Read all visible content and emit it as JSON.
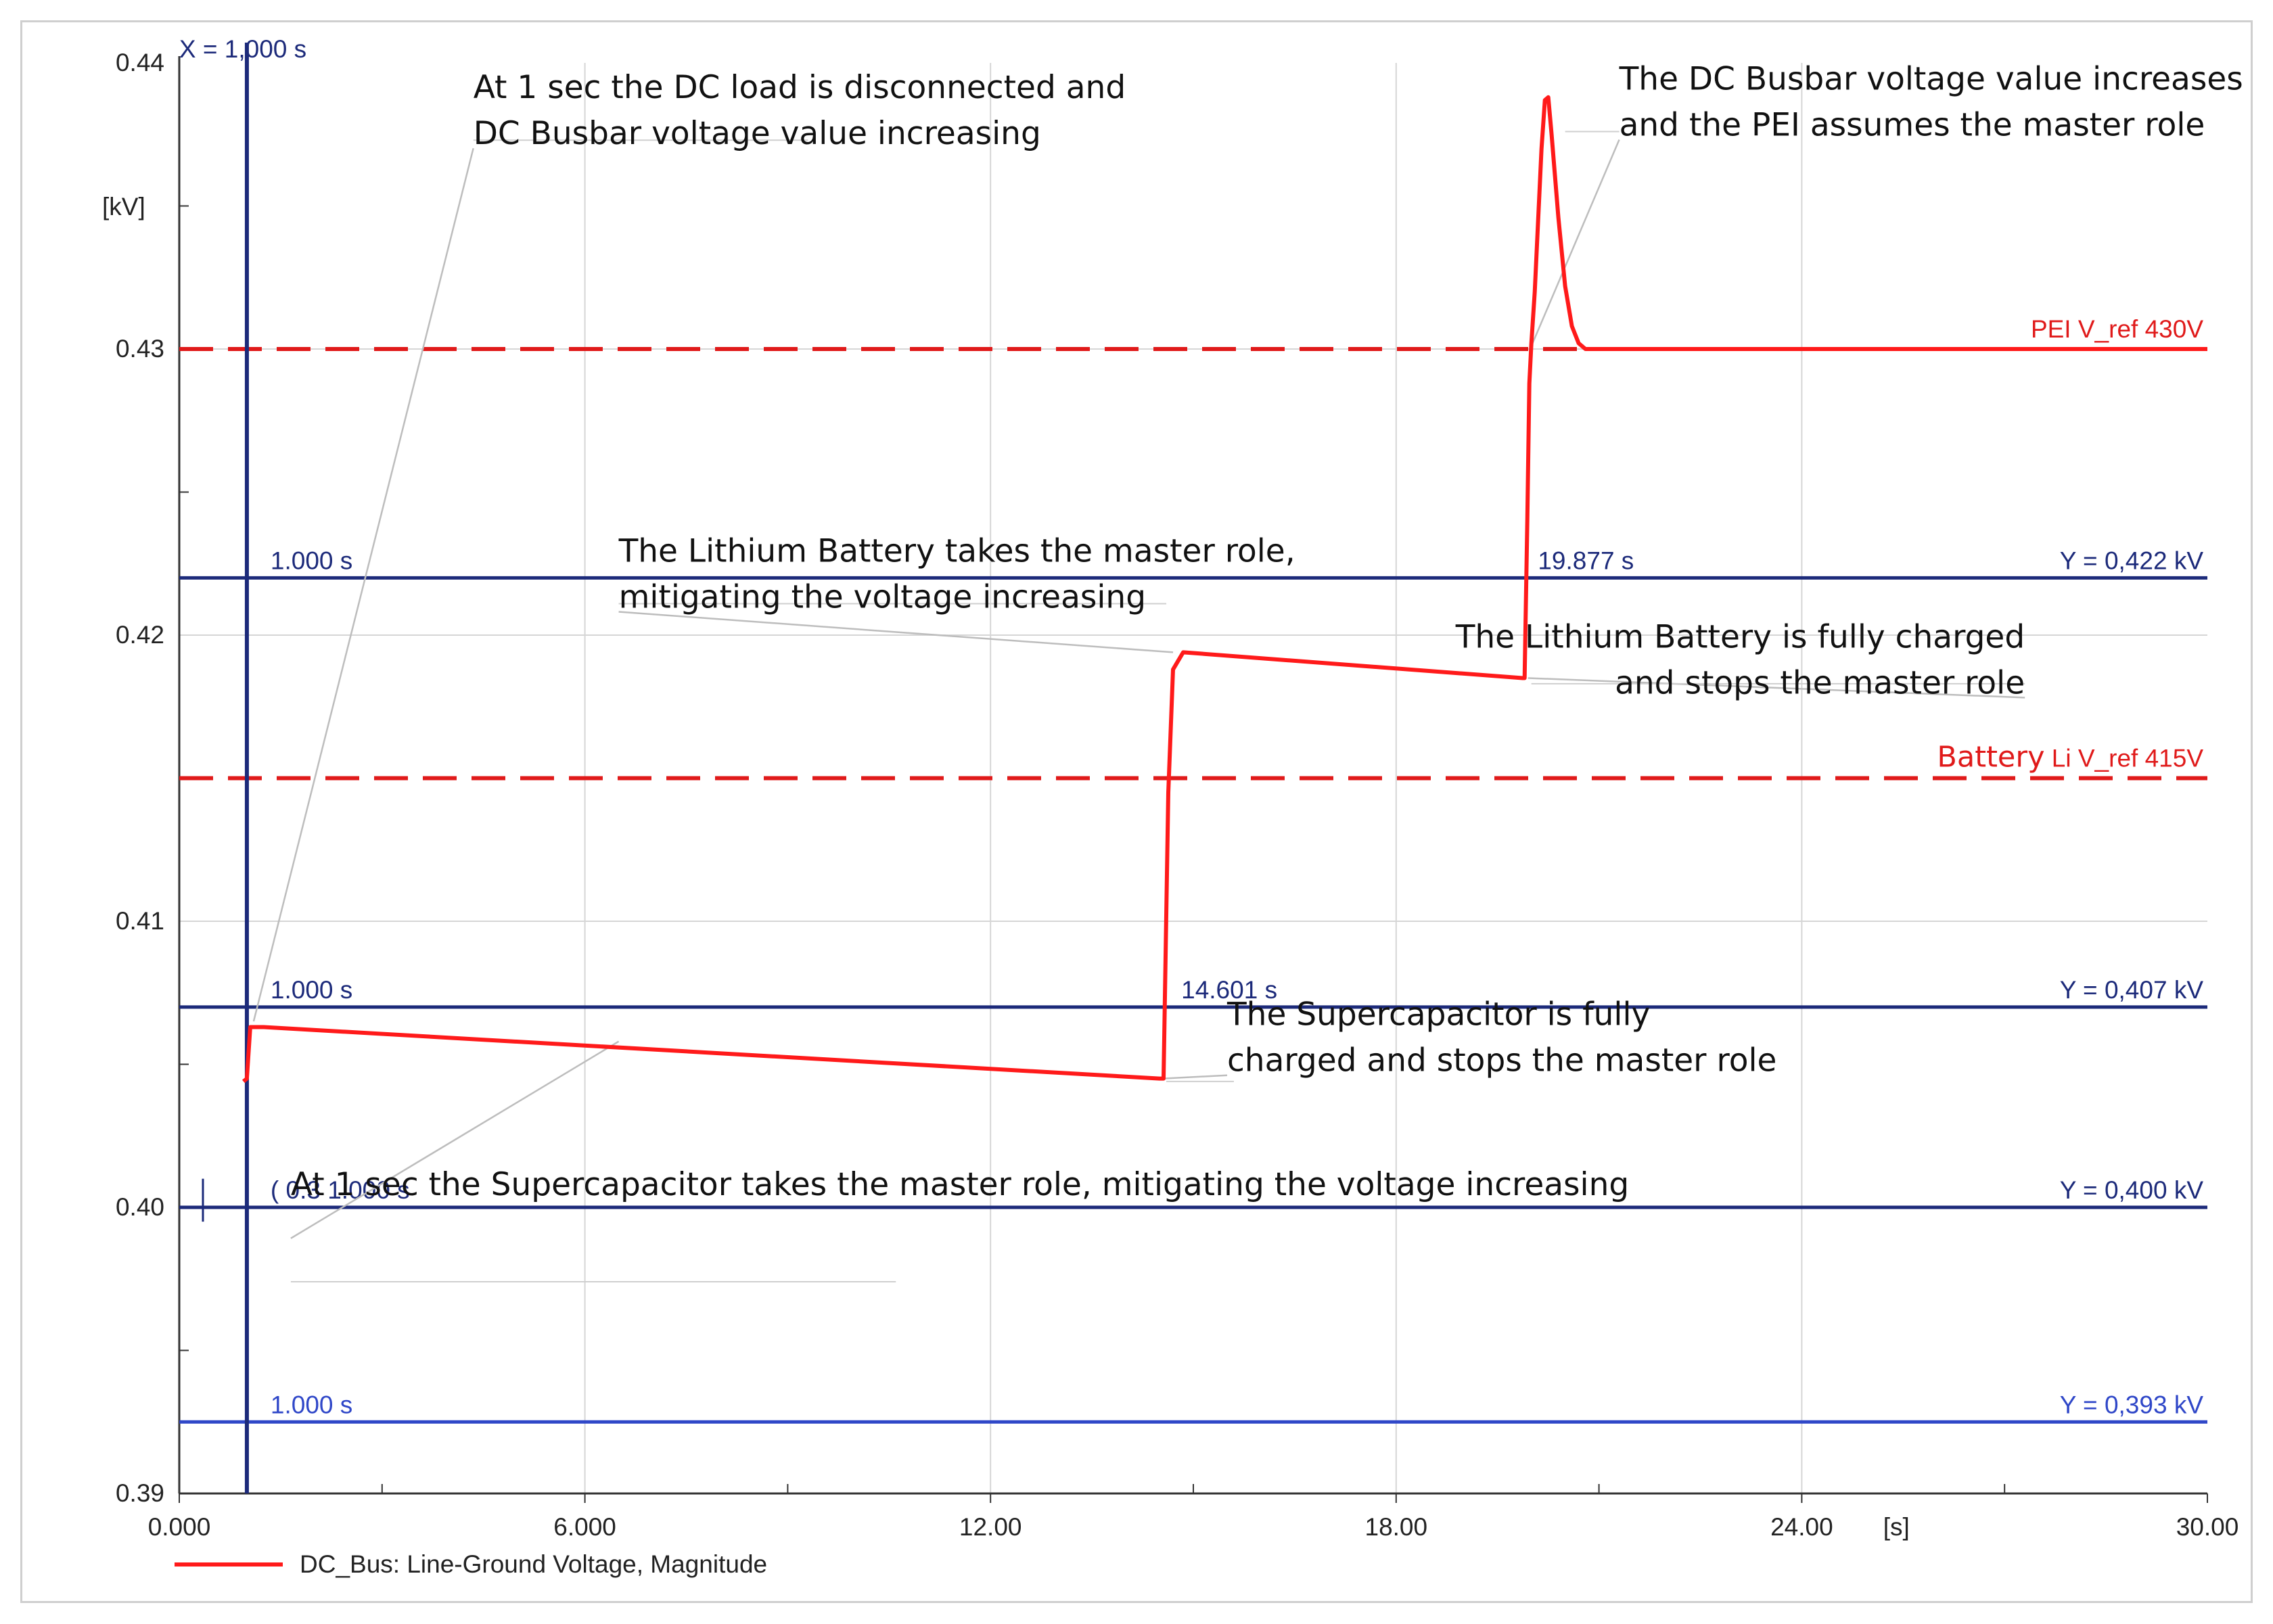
{
  "chart_data": {
    "type": "line",
    "x_unit": "[s]",
    "y_unit": "[kV]",
    "xlim": [
      0,
      30
    ],
    "ylim": [
      0.39,
      0.44
    ],
    "x_ticks": [
      {
        "value": 0,
        "label": "0.000"
      },
      {
        "value": 6,
        "label": "6.000"
      },
      {
        "value": 12,
        "label": "12.00"
      },
      {
        "value": 18,
        "label": "18.00"
      },
      {
        "value": 24,
        "label": "24.00"
      },
      {
        "value": 30,
        "label": "30.00"
      }
    ],
    "y_ticks": [
      {
        "value": 0.39,
        "label": "0.39"
      },
      {
        "value": 0.4,
        "label": "0.40"
      },
      {
        "value": 0.41,
        "label": "0.41"
      },
      {
        "value": 0.42,
        "label": "0.42"
      },
      {
        "value": 0.43,
        "label": "0.43"
      },
      {
        "value": 0.44,
        "label": "0.44"
      }
    ],
    "grid": true,
    "series": [
      {
        "name": "DC_Bus: Line-Ground Voltage, Magnitude",
        "color": "#ff1a1a",
        "points": [
          [
            0.95,
            0.4044
          ],
          [
            1.0,
            0.4045
          ],
          [
            1.05,
            0.4063
          ],
          [
            1.25,
            0.4063
          ],
          [
            14.5,
            0.4045
          ],
          [
            14.56,
            0.4045
          ],
          [
            14.63,
            0.4145
          ],
          [
            14.7,
            0.4188
          ],
          [
            14.85,
            0.4194
          ],
          [
            19.87,
            0.4185
          ],
          [
            19.9,
            0.4185
          ],
          [
            19.94,
            0.424
          ],
          [
            19.97,
            0.4288
          ],
          [
            20.0,
            0.4302
          ],
          [
            20.05,
            0.432
          ],
          [
            20.1,
            0.4345
          ],
          [
            20.15,
            0.437
          ],
          [
            20.2,
            0.4387
          ],
          [
            20.25,
            0.4388
          ],
          [
            20.3,
            0.4375
          ],
          [
            20.4,
            0.4346
          ],
          [
            20.5,
            0.4322
          ],
          [
            20.6,
            0.4308
          ],
          [
            20.7,
            0.4302
          ],
          [
            20.8,
            0.43
          ],
          [
            21.0,
            0.43
          ],
          [
            30.0,
            0.43
          ]
        ]
      }
    ],
    "reference_lines": [
      {
        "y": 0.43,
        "label": "PEI V_ref 430V",
        "style": "dashed",
        "color": "#e01a1a"
      },
      {
        "y": 0.415,
        "label_main": "Battery",
        "label_sub": " Li V_ref 415V",
        "style": "dashed",
        "color": "#e01a1a"
      }
    ],
    "cursor_x": {
      "x": 1.0,
      "label": "X =  1,000 s"
    },
    "cursor_lines": [
      {
        "y": 0.422,
        "left_label": "1.000 s",
        "mid_label": "19.877 s",
        "mid_x": 19.877,
        "right_label": "Y =  0,422 kV",
        "color": "#1c2a7a"
      },
      {
        "y": 0.407,
        "left_label": "1.000 s",
        "mid_label": "14.601 s",
        "mid_x": 14.601,
        "right_label": "Y =  0,407 kV",
        "color": "#1c2a7a"
      },
      {
        "y": 0.4,
        "left_label": "( 0.3 1.000 s",
        "right_label": "Y =  0,400 kV",
        "color": "#1c2a7a"
      },
      {
        "y": 0.3925,
        "left_label": "1.000 s",
        "right_label": "Y =  0,393 kV",
        "color": "#2f47c8"
      }
    ],
    "annotations": [
      {
        "lines": [
          "At 1 sec the DC load is disconnected and",
          "DC Busbar voltage value increasing"
        ],
        "x": 4.35,
        "y": 0.4373,
        "target": [
          1.1,
          0.4065
        ]
      },
      {
        "lines": [
          "The DC Busbar voltage value increases",
          "and the PEI assumes the master role"
        ],
        "x": 21.3,
        "y": 0.4376,
        "target": [
          20.0,
          0.4301
        ]
      },
      {
        "lines": [
          "The Lithium Battery takes the master role,",
          "mitigating the voltage increasing"
        ],
        "x": 6.5,
        "y": 0.4211,
        "target": [
          14.7,
          0.4194
        ]
      },
      {
        "lines": [
          "The Lithium Battery is fully charged",
          " and stops the master role"
        ],
        "x": 27.3,
        "y": 0.4181,
        "target": [
          19.95,
          0.4185
        ]
      },
      {
        "lines": [
          "The Supercapacitor is fully",
          "charged and stops the master role"
        ],
        "x": 15.5,
        "y": 0.4049,
        "target": [
          14.55,
          0.4045
        ]
      },
      {
        "lines": [
          "At 1 sec the Supercapacitor  takes the  master role, mitigating the voltage increasing"
        ],
        "x": 1.65,
        "y": 0.3992,
        "target": [
          6.5,
          0.4058
        ]
      }
    ],
    "legend": {
      "placement": "bottom-left",
      "label": "DC_Bus: Line-Ground Voltage, Magnitude"
    }
  }
}
